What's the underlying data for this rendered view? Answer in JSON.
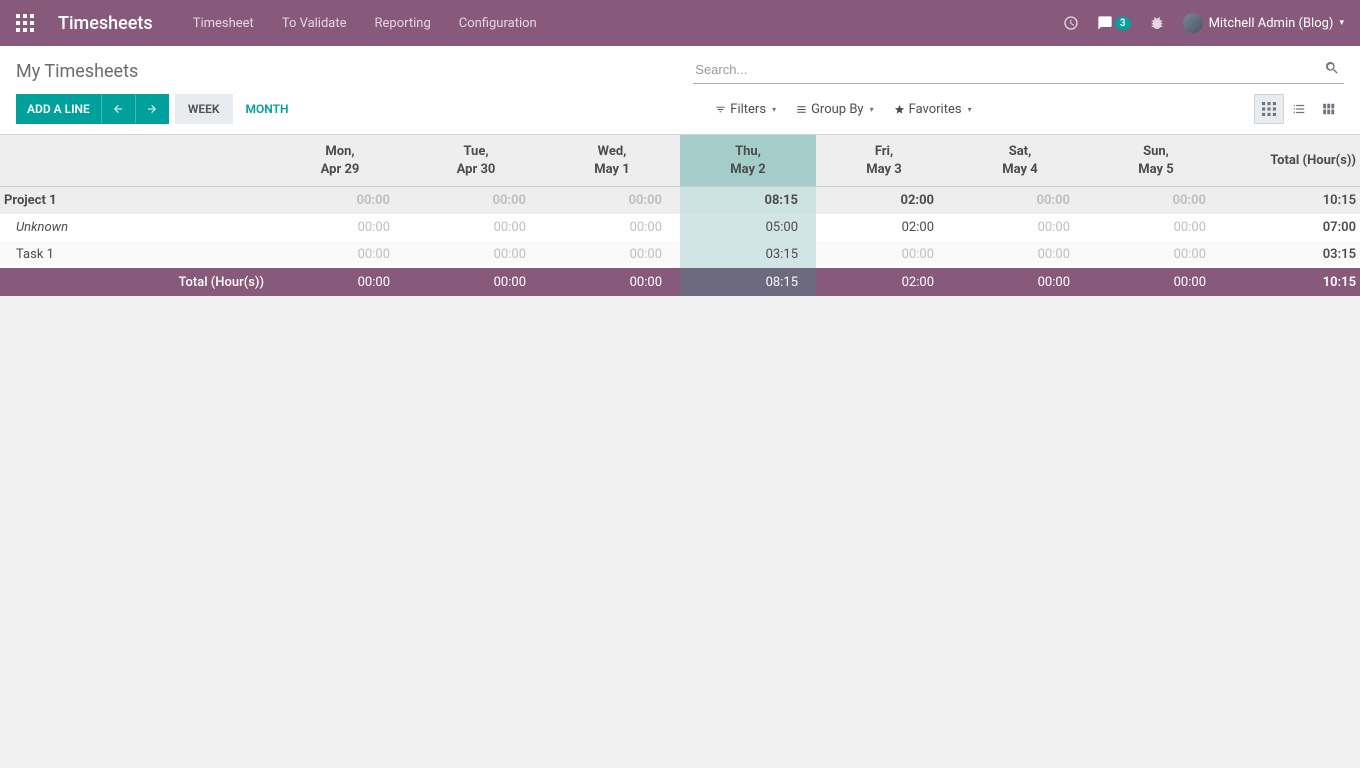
{
  "topbar": {
    "brand": "Timesheets",
    "nav": [
      "Timesheet",
      "To Validate",
      "Reporting",
      "Configuration"
    ],
    "messages_badge": "3",
    "user_label": "Mitchell Admin (Blog)"
  },
  "control": {
    "title": "My Timesheets",
    "search_placeholder": "Search...",
    "add_line": "ADD A LINE",
    "scale_week": "WEEK",
    "scale_month": "MONTH",
    "filters": "Filters",
    "group_by": "Group By",
    "favorites": "Favorites"
  },
  "grid": {
    "total_header": "Total (Hour(s))",
    "days": [
      {
        "dow": "Mon,",
        "date": "Apr 29",
        "today": false
      },
      {
        "dow": "Tue,",
        "date": "Apr 30",
        "today": false
      },
      {
        "dow": "Wed,",
        "date": "May 1",
        "today": false
      },
      {
        "dow": "Thu,",
        "date": "May 2",
        "today": true
      },
      {
        "dow": "Fri,",
        "date": "May 3",
        "today": false
      },
      {
        "dow": "Sat,",
        "date": "May 4",
        "today": false
      },
      {
        "dow": "Sun,",
        "date": "May 5",
        "today": false
      }
    ],
    "projects": [
      {
        "name": "Project 1",
        "values": [
          {
            "v": "00:00",
            "muted": true
          },
          {
            "v": "00:00",
            "muted": true
          },
          {
            "v": "00:00",
            "muted": true
          },
          {
            "v": "08:15",
            "muted": false
          },
          {
            "v": "02:00",
            "muted": false
          },
          {
            "v": "00:00",
            "muted": true
          },
          {
            "v": "00:00",
            "muted": true
          }
        ],
        "total": "10:15",
        "tasks": [
          {
            "name": "Unknown",
            "italic": true,
            "values": [
              {
                "v": "00:00",
                "muted": true
              },
              {
                "v": "00:00",
                "muted": true
              },
              {
                "v": "00:00",
                "muted": true
              },
              {
                "v": "05:00",
                "muted": false
              },
              {
                "v": "02:00",
                "muted": false
              },
              {
                "v": "00:00",
                "muted": true
              },
              {
                "v": "00:00",
                "muted": true
              }
            ],
            "total": "07:00"
          },
          {
            "name": "Task 1",
            "italic": false,
            "values": [
              {
                "v": "00:00",
                "muted": true
              },
              {
                "v": "00:00",
                "muted": true
              },
              {
                "v": "00:00",
                "muted": true
              },
              {
                "v": "03:15",
                "muted": false
              },
              {
                "v": "00:00",
                "muted": true
              },
              {
                "v": "00:00",
                "muted": true
              },
              {
                "v": "00:00",
                "muted": true
              }
            ],
            "total": "03:15"
          }
        ]
      }
    ],
    "footer": {
      "label": "Total (Hour(s))",
      "values": [
        "00:00",
        "00:00",
        "00:00",
        "08:15",
        "02:00",
        "00:00",
        "00:00"
      ],
      "total": "10:15"
    }
  }
}
